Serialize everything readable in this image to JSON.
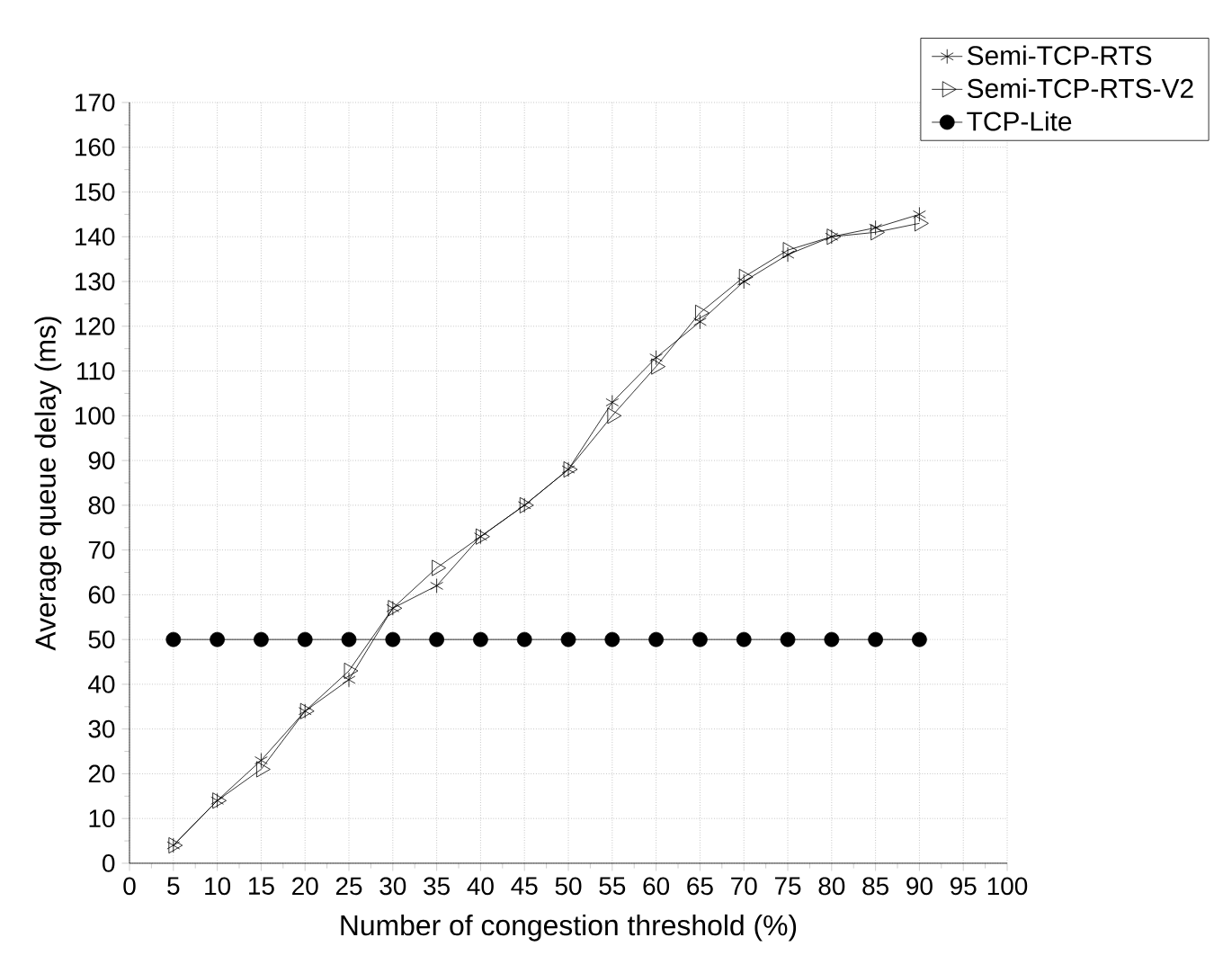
{
  "chart_data": {
    "type": "line",
    "xlabel": "Number of congestion threshold (%)",
    "ylabel": "Average queue delay (ms)",
    "x": [
      5,
      10,
      15,
      20,
      25,
      30,
      35,
      40,
      45,
      50,
      55,
      60,
      65,
      70,
      75,
      80,
      85,
      90
    ],
    "series": [
      {
        "name": "Semi-TCP-RTS",
        "color": "#000000",
        "marker": "cross",
        "values": [
          4,
          14,
          23,
          34,
          41,
          57,
          62,
          73,
          80,
          88,
          103,
          113,
          121,
          130,
          136,
          140,
          142,
          145
        ]
      },
      {
        "name": "Semi-TCP-RTS-V2",
        "color": "#000000",
        "marker": "triangle",
        "values": [
          4,
          14,
          21,
          34,
          43,
          57,
          66,
          73,
          80,
          88,
          100,
          111,
          123,
          131,
          137,
          140,
          141,
          143
        ]
      },
      {
        "name": "TCP-Lite",
        "color": "#000000",
        "marker": "circle",
        "values": [
          50,
          50,
          50,
          50,
          50,
          50,
          50,
          50,
          50,
          50,
          50,
          50,
          50,
          50,
          50,
          50,
          50,
          50
        ]
      }
    ],
    "xlim": [
      0,
      100
    ],
    "xticks": [
      0,
      5,
      10,
      15,
      20,
      25,
      30,
      35,
      40,
      45,
      50,
      55,
      60,
      65,
      70,
      75,
      80,
      85,
      90,
      95,
      100
    ],
    "ylim": [
      0,
      170
    ],
    "yticks": [
      0,
      10,
      20,
      30,
      40,
      50,
      60,
      70,
      80,
      90,
      100,
      110,
      120,
      130,
      140,
      150,
      160,
      170
    ],
    "grid": true,
    "legend": "top right",
    "line_style": "solid"
  }
}
